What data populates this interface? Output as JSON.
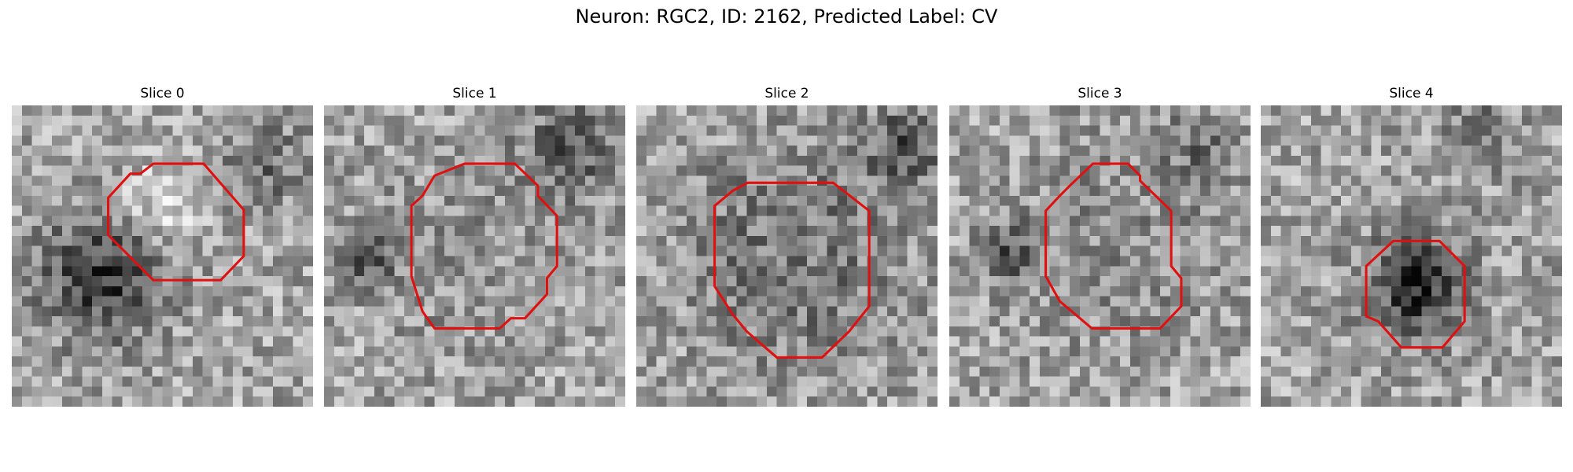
{
  "title": "Neuron: RGC2, ID: 2162, Predicted Label: CV",
  "panels": [
    {
      "title": "Slice 0"
    },
    {
      "title": "Slice 1"
    },
    {
      "title": "Slice 2"
    },
    {
      "title": "Slice 3"
    },
    {
      "title": "Slice 4"
    }
  ]
}
